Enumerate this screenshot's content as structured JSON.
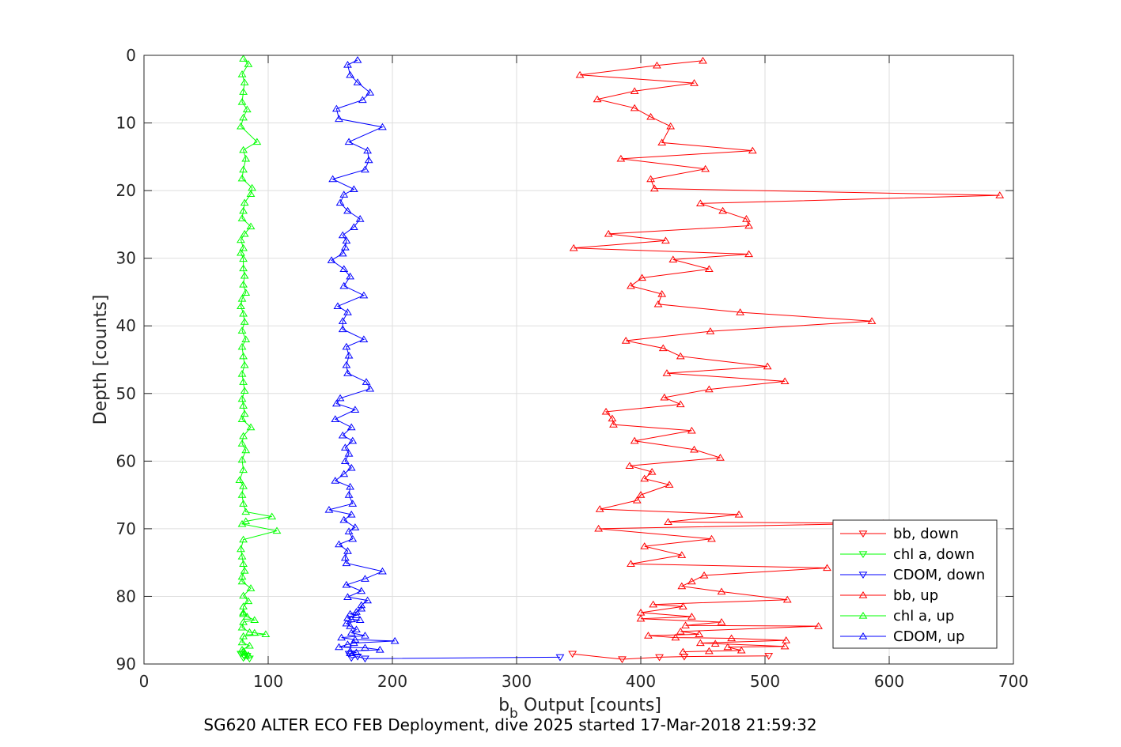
{
  "caption": "SG620 ALTER ECO FEB Deployment, dive 2025 started 17-Mar-2018 21:59:32",
  "chart_data": {
    "type": "line",
    "xlabel_base": "b",
    "xlabel_sub": "b",
    "xlabel_rest": " Output [counts]",
    "ylabel": "Depth [counts]",
    "xlim": [
      0,
      700
    ],
    "ylim": [
      0,
      90
    ],
    "y_reversed": true,
    "grid": true,
    "legend_placement": "bottom-right",
    "xticks": [
      "0",
      "100",
      "200",
      "300",
      "400",
      "500",
      "600",
      "700"
    ],
    "yticks": [
      "0",
      "10",
      "20",
      "30",
      "40",
      "50",
      "60",
      "70",
      "80",
      "90"
    ],
    "colors": {
      "red": "#ff0000",
      "green": "#00ff00",
      "blue": "#0000ff"
    },
    "series": [
      {
        "name": "bb, down",
        "color": "#ff0000",
        "marker": "triangle-down",
        "points": [
          [
            345,
            88.5
          ],
          [
            385,
            89.3
          ],
          [
            415,
            89.0
          ],
          [
            435,
            88.9
          ],
          [
            503,
            88.8
          ]
        ]
      },
      {
        "name": "chl a, down",
        "color": "#00ff00",
        "marker": "triangle-down",
        "points": [
          [
            78,
            88.5
          ],
          [
            80,
            89.1
          ],
          [
            83,
            88.8
          ],
          [
            85,
            89.2
          ],
          [
            81,
            88.9
          ]
        ]
      },
      {
        "name": "CDOM, down",
        "color": "#0000ff",
        "marker": "triangle-down",
        "points": [
          [
            165,
            88.5
          ],
          [
            167,
            89.1
          ],
          [
            172,
            88.9
          ],
          [
            178,
            89.2
          ],
          [
            335,
            89.0
          ]
        ]
      },
      {
        "name": "bb, up",
        "color": "#ff0000",
        "marker": "triangle-up",
        "points": [
          [
            450,
            0.8
          ],
          [
            413,
            1.5
          ],
          [
            351,
            2.9
          ],
          [
            443,
            4.1
          ],
          [
            395,
            5.3
          ],
          [
            365,
            6.5
          ],
          [
            395,
            7.8
          ],
          [
            408,
            9.1
          ],
          [
            424,
            10.5
          ],
          [
            417,
            12.9
          ],
          [
            490,
            14.1
          ],
          [
            384,
            15.3
          ],
          [
            452,
            16.8
          ],
          [
            408,
            18.3
          ],
          [
            411,
            19.7
          ],
          [
            689,
            20.7
          ],
          [
            448,
            21.9
          ],
          [
            466,
            23.0
          ],
          [
            485,
            24.2
          ],
          [
            487,
            25.2
          ],
          [
            374,
            26.4
          ],
          [
            420,
            27.4
          ],
          [
            346,
            28.5
          ],
          [
            487,
            29.4
          ],
          [
            426,
            30.2
          ],
          [
            455,
            31.6
          ],
          [
            401,
            32.9
          ],
          [
            392,
            34.1
          ],
          [
            417,
            35.3
          ],
          [
            414,
            36.8
          ],
          [
            480,
            38.0
          ],
          [
            586,
            39.3
          ],
          [
            456,
            40.8
          ],
          [
            388,
            42.2
          ],
          [
            418,
            43.3
          ],
          [
            432,
            44.5
          ],
          [
            502,
            46.0
          ],
          [
            421,
            47.0
          ],
          [
            516,
            48.2
          ],
          [
            455,
            49.4
          ],
          [
            419,
            50.6
          ],
          [
            432,
            51.6
          ],
          [
            372,
            52.7
          ],
          [
            377,
            53.7
          ],
          [
            378,
            54.6
          ],
          [
            441,
            55.5
          ],
          [
            395,
            57.0
          ],
          [
            443,
            58.3
          ],
          [
            464,
            59.5
          ],
          [
            391,
            60.7
          ],
          [
            409,
            61.6
          ],
          [
            403,
            62.6
          ],
          [
            423,
            63.5
          ],
          [
            400,
            65.0
          ],
          [
            397,
            65.8
          ],
          [
            367,
            67.1
          ],
          [
            479,
            67.9
          ],
          [
            422,
            69.0
          ],
          [
            595,
            69.2
          ],
          [
            366,
            70.0
          ],
          [
            457,
            71.5
          ],
          [
            403,
            72.6
          ],
          [
            433,
            73.9
          ],
          [
            392,
            75.2
          ],
          [
            550,
            75.8
          ],
          [
            451,
            76.9
          ],
          [
            441,
            77.8
          ],
          [
            433,
            78.5
          ],
          [
            465,
            79.3
          ],
          [
            518,
            80.5
          ],
          [
            410,
            81.2
          ],
          [
            434,
            81.5
          ],
          [
            400,
            82.4
          ],
          [
            441,
            83.0
          ],
          [
            400,
            83.3
          ],
          [
            465,
            83.8
          ],
          [
            436,
            84.3
          ],
          [
            543,
            84.4
          ],
          [
            432,
            85.2
          ],
          [
            447,
            85.6
          ],
          [
            406,
            85.8
          ],
          [
            428,
            86.1
          ],
          [
            473,
            86.2
          ],
          [
            517,
            86.5
          ],
          [
            448,
            86.9
          ],
          [
            460,
            87.0
          ],
          [
            516,
            87.4
          ],
          [
            470,
            87.5
          ],
          [
            481,
            88.0
          ],
          [
            455,
            88.1
          ],
          [
            434,
            88.2
          ]
        ]
      },
      {
        "name": "chl a, up",
        "color": "#00ff00",
        "marker": "triangle-up",
        "points": [
          [
            80,
            0.5
          ],
          [
            84,
            1.3
          ],
          [
            79,
            2.8
          ],
          [
            81,
            4.0
          ],
          [
            80,
            5.4
          ],
          [
            79,
            6.9
          ],
          [
            83,
            8.0
          ],
          [
            80,
            9.2
          ],
          [
            78,
            10.5
          ],
          [
            91,
            12.8
          ],
          [
            80,
            14.0
          ],
          [
            82,
            15.3
          ],
          [
            80,
            16.9
          ],
          [
            79,
            18.2
          ],
          [
            87,
            19.6
          ],
          [
            86,
            20.5
          ],
          [
            81,
            21.8
          ],
          [
            80,
            23.0
          ],
          [
            79,
            24.1
          ],
          [
            86,
            25.3
          ],
          [
            81,
            26.4
          ],
          [
            78,
            27.3
          ],
          [
            80,
            28.5
          ],
          [
            78,
            29.2
          ],
          [
            80,
            30.1
          ],
          [
            80,
            31.5
          ],
          [
            81,
            32.6
          ],
          [
            80,
            33.9
          ],
          [
            82,
            35.1
          ],
          [
            79,
            36.0
          ],
          [
            78,
            37.1
          ],
          [
            80,
            38.2
          ],
          [
            81,
            39.4
          ],
          [
            79,
            40.7
          ],
          [
            82,
            42.0
          ],
          [
            79,
            43.1
          ],
          [
            80,
            44.5
          ],
          [
            81,
            45.8
          ],
          [
            79,
            47.1
          ],
          [
            80,
            48.3
          ],
          [
            81,
            49.6
          ],
          [
            79,
            50.8
          ],
          [
            80,
            51.8
          ],
          [
            81,
            53.0
          ],
          [
            79,
            53.8
          ],
          [
            86,
            55.0
          ],
          [
            80,
            56.3
          ],
          [
            79,
            57.4
          ],
          [
            82,
            58.4
          ],
          [
            79,
            59.8
          ],
          [
            80,
            61.3
          ],
          [
            77,
            62.8
          ],
          [
            80,
            63.7
          ],
          [
            79,
            65.0
          ],
          [
            80,
            66.3
          ],
          [
            82,
            67.5
          ],
          [
            103,
            68.2
          ],
          [
            82,
            68.9
          ],
          [
            79,
            69.3
          ],
          [
            107,
            70.3
          ],
          [
            80,
            71.6
          ],
          [
            78,
            73.0
          ],
          [
            79,
            74.1
          ],
          [
            80,
            75.2
          ],
          [
            81,
            76.2
          ],
          [
            79,
            77.1
          ],
          [
            79,
            77.8
          ],
          [
            86,
            78.8
          ],
          [
            80,
            79.9
          ],
          [
            84,
            80.7
          ],
          [
            80,
            81.5
          ],
          [
            80,
            82.4
          ],
          [
            80,
            82.6
          ],
          [
            83,
            83.0
          ],
          [
            89,
            83.5
          ],
          [
            80,
            83.8
          ],
          [
            79,
            84.6
          ],
          [
            85,
            85.3
          ],
          [
            89,
            85.4
          ],
          [
            98,
            85.6
          ],
          [
            80,
            85.9
          ],
          [
            79,
            86.8
          ],
          [
            85,
            87.3
          ],
          [
            79,
            87.9
          ],
          [
            80,
            88.1
          ],
          [
            81,
            88.3
          ],
          [
            84,
            88.7
          ]
        ]
      },
      {
        "name": "CDOM, up",
        "color": "#0000ff",
        "marker": "triangle-up",
        "points": [
          [
            172,
            0.7
          ],
          [
            164,
            1.4
          ],
          [
            166,
            2.9
          ],
          [
            172,
            4.0
          ],
          [
            182,
            5.5
          ],
          [
            176,
            6.6
          ],
          [
            155,
            7.9
          ],
          [
            157,
            9.4
          ],
          [
            192,
            10.6
          ],
          [
            165,
            12.8
          ],
          [
            180,
            14.1
          ],
          [
            181,
            15.5
          ],
          [
            178,
            16.9
          ],
          [
            152,
            18.3
          ],
          [
            169,
            19.8
          ],
          [
            161,
            20.6
          ],
          [
            158,
            21.8
          ],
          [
            164,
            23.0
          ],
          [
            174,
            24.2
          ],
          [
            169,
            25.4
          ],
          [
            160,
            26.6
          ],
          [
            163,
            27.4
          ],
          [
            162,
            28.4
          ],
          [
            160,
            29.3
          ],
          [
            151,
            30.3
          ],
          [
            161,
            31.6
          ],
          [
            166,
            32.7
          ],
          [
            161,
            34.1
          ],
          [
            177,
            35.5
          ],
          [
            156,
            37.1
          ],
          [
            164,
            38.0
          ],
          [
            160,
            39.3
          ],
          [
            160,
            40.5
          ],
          [
            177,
            42.0
          ],
          [
            163,
            43.1
          ],
          [
            165,
            44.4
          ],
          [
            163,
            45.8
          ],
          [
            164,
            47.0
          ],
          [
            179,
            48.3
          ],
          [
            182,
            49.3
          ],
          [
            158,
            50.7
          ],
          [
            155,
            51.5
          ],
          [
            170,
            52.4
          ],
          [
            154,
            53.8
          ],
          [
            167,
            55.0
          ],
          [
            160,
            56.2
          ],
          [
            168,
            57.0
          ],
          [
            162,
            58.0
          ],
          [
            165,
            58.9
          ],
          [
            162,
            60.0
          ],
          [
            167,
            61.0
          ],
          [
            161,
            61.9
          ],
          [
            154,
            62.9
          ],
          [
            166,
            63.8
          ],
          [
            165,
            65.0
          ],
          [
            168,
            66.3
          ],
          [
            149,
            67.2
          ],
          [
            167,
            67.9
          ],
          [
            161,
            68.7
          ],
          [
            170,
            69.8
          ],
          [
            165,
            70.4
          ],
          [
            168,
            71.5
          ],
          [
            157,
            72.3
          ],
          [
            164,
            73.3
          ],
          [
            162,
            74.3
          ],
          [
            163,
            75.1
          ],
          [
            192,
            76.3
          ],
          [
            178,
            77.4
          ],
          [
            163,
            78.3
          ],
          [
            175,
            79.2
          ],
          [
            164,
            80.1
          ],
          [
            180,
            80.6
          ],
          [
            175,
            81.3
          ],
          [
            175,
            81.8
          ],
          [
            171,
            82.3
          ],
          [
            166,
            82.6
          ],
          [
            171,
            82.8
          ],
          [
            164,
            83.2
          ],
          [
            167,
            83.4
          ],
          [
            174,
            83.5
          ],
          [
            163,
            84.0
          ],
          [
            166,
            84.4
          ],
          [
            171,
            84.9
          ],
          [
            167,
            85.4
          ],
          [
            178,
            85.8
          ],
          [
            159,
            86.1
          ],
          [
            170,
            86.4
          ],
          [
            202,
            86.6
          ],
          [
            169,
            86.9
          ],
          [
            164,
            87.1
          ],
          [
            157,
            87.5
          ],
          [
            178,
            87.6
          ],
          [
            190,
            87.9
          ],
          [
            166,
            88.1
          ],
          [
            171,
            88.3
          ],
          [
            166,
            88.4
          ]
        ]
      }
    ]
  }
}
